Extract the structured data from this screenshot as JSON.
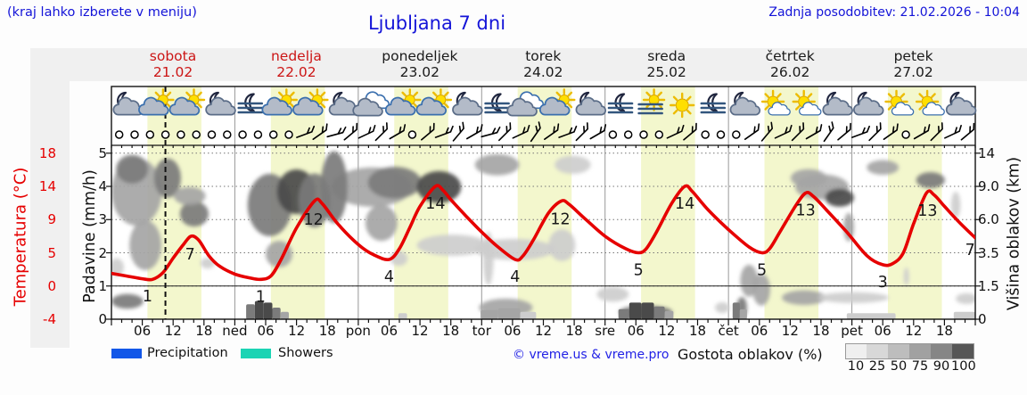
{
  "header": {
    "hint": "(kraj lahko izberete v meniju)",
    "title": "Ljubljana 7 dni",
    "updated": "Zadnja posodobitev: 21.02.2026 - 10:04"
  },
  "days": [
    {
      "name": "sobota",
      "date": "21.02",
      "highlight": true
    },
    {
      "name": "nedelja",
      "date": "22.02",
      "highlight": true
    },
    {
      "name": "ponedeljek",
      "date": "23.02",
      "highlight": false
    },
    {
      "name": "torek",
      "date": "24.02",
      "highlight": false
    },
    {
      "name": "sreda",
      "date": "25.02",
      "highlight": false
    },
    {
      "name": "četrtek",
      "date": "26.02",
      "highlight": false
    },
    {
      "name": "petek",
      "date": "27.02",
      "highlight": false
    }
  ],
  "axes": {
    "temp_label": "Temperatura (°C)",
    "temp_ticks": [
      "18",
      "14",
      "9",
      "5",
      "0",
      "-4"
    ],
    "precip_label": "Padavine (mm/h)",
    "precip_ticks": [
      "5",
      "4",
      "3",
      "2",
      "1",
      "0"
    ],
    "cloud_label": "Višina oblakov (km)",
    "cloud_ticks": [
      "14",
      "9.0",
      "6.0",
      "3.5",
      "1.5",
      "0"
    ],
    "time_labels": [
      {
        "h": 6,
        "t": "06"
      },
      {
        "h": 12,
        "t": "12"
      },
      {
        "h": 18,
        "t": "18"
      },
      {
        "h": 24,
        "t": "ned"
      },
      {
        "h": 30,
        "t": "06"
      },
      {
        "h": 36,
        "t": "12"
      },
      {
        "h": 42,
        "t": "18"
      },
      {
        "h": 48,
        "t": "pon"
      },
      {
        "h": 54,
        "t": "06"
      },
      {
        "h": 60,
        "t": "12"
      },
      {
        "h": 66,
        "t": "18"
      },
      {
        "h": 72,
        "t": "tor"
      },
      {
        "h": 78,
        "t": "06"
      },
      {
        "h": 84,
        "t": "12"
      },
      {
        "h": 90,
        "t": "18"
      },
      {
        "h": 96,
        "t": "sre"
      },
      {
        "h": 102,
        "t": "06"
      },
      {
        "h": 108,
        "t": "12"
      },
      {
        "h": 114,
        "t": "18"
      },
      {
        "h": 120,
        "t": "čet"
      },
      {
        "h": 126,
        "t": "06"
      },
      {
        "h": 132,
        "t": "12"
      },
      {
        "h": 138,
        "t": "18"
      },
      {
        "h": 144,
        "t": "pet"
      },
      {
        "h": 150,
        "t": "06"
      },
      {
        "h": 156,
        "t": "12"
      },
      {
        "h": 162,
        "t": "18"
      }
    ]
  },
  "legend": {
    "precipitation": "Precipitation",
    "showers": "Showers",
    "credit": "© vreme.us & vreme.pro",
    "cloud_density": "Gostota oblakov (%)",
    "scale_labels": [
      "10",
      "25",
      "50",
      "75",
      "90",
      "100"
    ],
    "scale_colors": [
      "#efefef",
      "#d8d8d8",
      "#bdbdbd",
      "#a1a1a1",
      "#868686",
      "#565656"
    ],
    "precip_color": "#1257e8",
    "showers_color": "#1bd4b4"
  },
  "colors": {
    "curve_red": "#e60000",
    "day_band": "#f3f7cd",
    "grid": "#777777",
    "frame": "#111111",
    "day_line": "#999999"
  },
  "chart_data": {
    "type": "line",
    "subtype": "meteogram",
    "hours_total": 168,
    "now_hour": 10.5,
    "daylight_bands_h": [
      [
        7,
        17.5
      ],
      [
        31,
        41.5
      ],
      [
        55,
        65.5
      ],
      [
        79,
        89.5
      ],
      [
        103,
        113.5
      ],
      [
        127,
        137.5
      ],
      [
        151,
        161.5
      ]
    ],
    "temperature_c": [
      [
        0,
        1.9
      ],
      [
        3,
        1.5
      ],
      [
        6,
        1.1
      ],
      [
        8,
        1
      ],
      [
        10,
        2
      ],
      [
        12,
        4.2
      ],
      [
        14,
        6
      ],
      [
        15.5,
        7
      ],
      [
        17,
        6.5
      ],
      [
        19,
        4.5
      ],
      [
        21,
        3
      ],
      [
        24,
        1.8
      ],
      [
        27,
        1.2
      ],
      [
        29,
        1
      ],
      [
        31,
        1.5
      ],
      [
        33,
        4
      ],
      [
        36,
        8
      ],
      [
        39.5,
        11.8
      ],
      [
        41,
        11.4
      ],
      [
        44,
        8.5
      ],
      [
        48,
        6
      ],
      [
        51,
        4.7
      ],
      [
        54,
        4
      ],
      [
        56,
        5.5
      ],
      [
        58,
        8
      ],
      [
        60,
        11
      ],
      [
        63,
        14
      ],
      [
        64.5,
        13.4
      ],
      [
        66,
        12
      ],
      [
        69,
        9.5
      ],
      [
        72,
        7.5
      ],
      [
        75,
        5.8
      ],
      [
        78.5,
        4
      ],
      [
        80,
        4.5
      ],
      [
        82,
        6.5
      ],
      [
        85,
        10
      ],
      [
        87.5,
        11.8
      ],
      [
        89,
        11.3
      ],
      [
        92,
        9.2
      ],
      [
        96,
        7
      ],
      [
        100,
        5.5
      ],
      [
        102.5,
        5
      ],
      [
        104,
        5.5
      ],
      [
        106,
        7.5
      ],
      [
        109,
        11.5
      ],
      [
        111.5,
        14
      ],
      [
        113,
        13.2
      ],
      [
        116,
        10.5
      ],
      [
        120,
        7.8
      ],
      [
        124,
        5.7
      ],
      [
        126.5,
        5
      ],
      [
        128,
        5.5
      ],
      [
        130,
        7.5
      ],
      [
        133,
        11
      ],
      [
        135,
        13
      ],
      [
        136.5,
        12.5
      ],
      [
        139,
        10.5
      ],
      [
        143,
        7.5
      ],
      [
        147,
        4.5
      ],
      [
        150,
        3.2
      ],
      [
        152,
        3.4
      ],
      [
        154,
        5
      ],
      [
        156,
        8.5
      ],
      [
        158.5,
        13
      ],
      [
        160,
        12.7
      ],
      [
        162,
        11
      ],
      [
        165,
        8.6
      ],
      [
        168,
        6.8
      ]
    ],
    "temperature_labels": [
      [
        7,
        "1"
      ],
      [
        15.3,
        "7"
      ],
      [
        29,
        "1"
      ],
      [
        39.3,
        "12"
      ],
      [
        54,
        "4"
      ],
      [
        63,
        "14"
      ],
      [
        78.5,
        "4"
      ],
      [
        87.3,
        "12"
      ],
      [
        102.5,
        "5"
      ],
      [
        111.5,
        "14"
      ],
      [
        126.5,
        "5"
      ],
      [
        135,
        "13"
      ],
      [
        150,
        "3"
      ],
      [
        158.7,
        "13"
      ],
      [
        167,
        "7"
      ]
    ],
    "precipitation_bars": [
      [
        26.2,
        1.7,
        0.45,
        4
      ],
      [
        27.9,
        1.7,
        0.55,
        5
      ],
      [
        29.6,
        1.7,
        0.5,
        5
      ],
      [
        31.3,
        1.6,
        0.35,
        4
      ],
      [
        32.9,
        1.6,
        0.22,
        3
      ],
      [
        55.8,
        1.7,
        0.18,
        2
      ],
      [
        71.8,
        3.4,
        0.28,
        3
      ],
      [
        75.2,
        4.3,
        0.33,
        3
      ],
      [
        79.5,
        3.1,
        0.22,
        2
      ],
      [
        98.6,
        2.1,
        0.3,
        4
      ],
      [
        100.7,
        2.4,
        0.5,
        5
      ],
      [
        103.1,
        2.4,
        0.5,
        5
      ],
      [
        105.5,
        2.1,
        0.38,
        4
      ],
      [
        107.6,
        1.7,
        0.25,
        3
      ],
      [
        120.8,
        1.4,
        0.5,
        4
      ],
      [
        122.2,
        1.4,
        0.3,
        3
      ],
      [
        143,
        9.5,
        0.18,
        2
      ],
      [
        163.8,
        4.2,
        0.22,
        2
      ]
    ],
    "cloud_blobs": [
      [
        4.9,
        3.84,
        4.9,
        1.02,
        3
      ],
      [
        4.0,
        4.52,
        3.1,
        0.43,
        4
      ],
      [
        10.9,
        4.25,
        2.6,
        0.59,
        4
      ],
      [
        6.6,
        2.23,
        3.1,
        0.75,
        3
      ],
      [
        3.1,
        0.54,
        3.1,
        0.22,
        4
      ],
      [
        16.1,
        3.17,
        2.8,
        0.38,
        4
      ],
      [
        15.2,
        3.71,
        3.1,
        0.27,
        3
      ],
      [
        18.7,
        1.69,
        1.4,
        0.16,
        2
      ],
      [
        1.0,
        1.56,
        1.4,
        0.27,
        2
      ],
      [
        30.8,
        3.44,
        4.3,
        0.94,
        4
      ],
      [
        36.0,
        3.84,
        3.8,
        0.67,
        5
      ],
      [
        39.5,
        3.58,
        3.1,
        0.81,
        4
      ],
      [
        32.6,
        1.96,
        2.6,
        0.4,
        3
      ],
      [
        50.7,
        3.98,
        7.8,
        0.59,
        3
      ],
      [
        43.3,
        3.98,
        2.6,
        1.08,
        4
      ],
      [
        55.1,
        4.11,
        5.2,
        0.48,
        4
      ],
      [
        63.7,
        3.98,
        4.3,
        0.48,
        5
      ],
      [
        52.5,
        2.9,
        3.1,
        0.54,
        3
      ],
      [
        55.9,
        1.83,
        1.7,
        0.22,
        2
      ],
      [
        75.0,
        4.65,
        4.3,
        0.32,
        3
      ],
      [
        66.3,
        2.23,
        6.9,
        0.32,
        2
      ],
      [
        78.4,
        2.1,
        7.8,
        0.32,
        2
      ],
      [
        76.7,
        0.35,
        5.2,
        0.27,
        3
      ],
      [
        73.3,
        1.83,
        1.0,
        0.81,
        2
      ],
      [
        89.7,
        4.65,
        3.5,
        0.27,
        2
      ],
      [
        87.6,
        2.23,
        2.6,
        0.48,
        2
      ],
      [
        97.5,
        0.75,
        3.1,
        0.22,
        2
      ],
      [
        103.9,
        0.22,
        5.2,
        0.19,
        4
      ],
      [
        124.0,
        1.16,
        1.7,
        0.48,
        3
      ],
      [
        126.4,
        0.89,
        1.7,
        0.48,
        3
      ],
      [
        122.6,
        0.35,
        1.0,
        0.32,
        4
      ],
      [
        118.8,
        0.35,
        1.4,
        0.16,
        2
      ],
      [
        138.2,
        3.98,
        5.2,
        0.38,
        3
      ],
      [
        141.6,
        3.66,
        2.8,
        0.27,
        5
      ],
      [
        135.6,
        4.25,
        3.5,
        0.27,
        3
      ],
      [
        150.0,
        4.57,
        3.1,
        0.22,
        3
      ],
      [
        159.3,
        4.19,
        2.8,
        0.24,
        4
      ],
      [
        143.4,
        2.77,
        1.0,
        0.43,
        3
      ],
      [
        164.2,
        3.44,
        0.9,
        0.4,
        2
      ],
      [
        154.6,
        1.29,
        0.5,
        0.27,
        2
      ],
      [
        134.7,
        0.65,
        4.3,
        0.22,
        3
      ],
      [
        144.3,
        0.65,
        6.9,
        0.16,
        2
      ],
      [
        166.3,
        0.62,
        2.1,
        0.16,
        2
      ]
    ],
    "cloud_shades": [
      "#e6e6e6",
      "#cdcdcd",
      "#a5a5a5",
      "#7b7b7b",
      "#4a4a4a"
    ],
    "weather_icons": [
      "moon-cloud",
      "sun-cloud",
      "sun-cloud",
      "moon-cloud",
      "fog-moon",
      "sun-cloud",
      "sun-cloud",
      "moon-cloud",
      "clouds",
      "sun-cloud",
      "sun-cloud",
      "moon-cloud",
      "fog-moon",
      "clouds",
      "sun-cloud",
      "moon-cloud",
      "fog-moon",
      "fog-sun",
      "sun",
      "fog-moon",
      "moon-cloud",
      "sun-cloud-small",
      "sun-cloud-small",
      "moon-cloud",
      "moon-cloud",
      "sun-cloud-small",
      "sun-cloud-small",
      "moon-cloud"
    ],
    "wind_symbols": [
      "c",
      "c",
      "c",
      "c",
      "c",
      "c",
      "c",
      "c",
      "c",
      "c",
      "c",
      "c",
      -20,
      -35,
      -15,
      -40,
      -25,
      -45,
      -30,
      "c",
      -40,
      -20,
      -50,
      -30,
      -15,
      -45,
      -25,
      -55,
      -35,
      -20,
      -45,
      -30,
      "c",
      "c",
      "c",
      "c",
      -25,
      -40,
      "c",
      "c",
      "c",
      -35,
      -50,
      -25,
      -45,
      -30,
      -55,
      -40,
      -20,
      -45,
      -35,
      "c",
      -30,
      -45,
      -25,
      -40
    ]
  }
}
